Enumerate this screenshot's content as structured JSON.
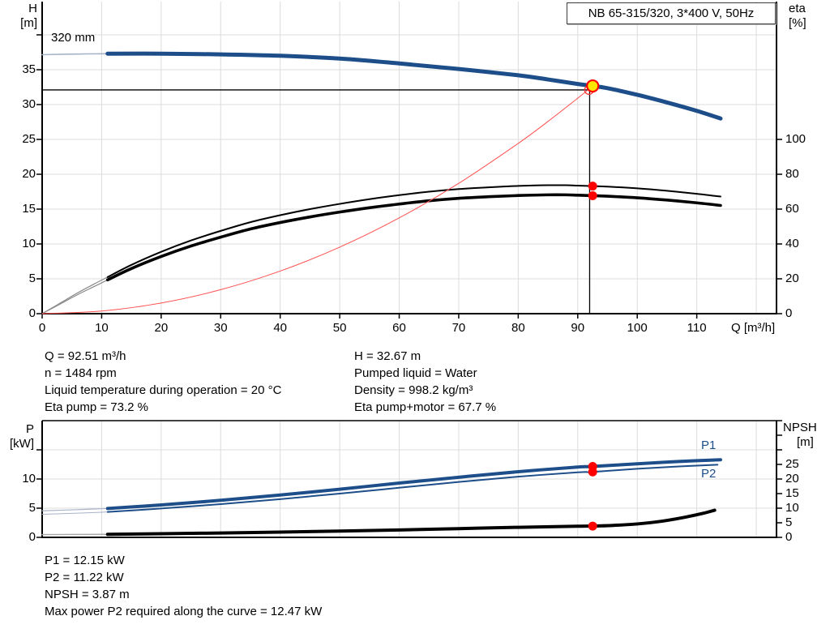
{
  "title_box": {
    "label": "NB 65-315/320, 3*400 V, 50Hz"
  },
  "axes": {
    "h_label_line1": "H",
    "h_label_line2": "[m]",
    "eta_label_line1": "eta",
    "eta_label_line2": "[%]",
    "q_label": "Q [m³/h]",
    "p_label_line1": "P",
    "p_label_line2": "[kW]",
    "npsh_label_line1": "NPSH",
    "npsh_label_line2": "[m]"
  },
  "curve_labels": {
    "impeller": "320 mm",
    "p1": "P1",
    "p2": "P2"
  },
  "info_top": {
    "left": [
      "Q = 92.51 m³/h",
      "n = 1484 rpm",
      "Liquid temperature during operation = 20 °C",
      "Eta pump = 73.2 %"
    ],
    "right": [
      "H = 32.67 m",
      "Pumped liquid = Water",
      "Density = 998.2 kg/m³",
      "Eta pump+motor = 67.7 %"
    ]
  },
  "info_bottom": [
    "P1 = 12.15 kW",
    "P2 = 11.22 kW",
    "NPSH = 3.87 m",
    "Max power P2 required along the curve = 12.47 kW"
  ],
  "colors": {
    "curve_blue": "#1d4e89",
    "curve_black": "#000000",
    "system_red": "#ff5050",
    "marker_red": "#ff0000",
    "duty_yellow": "#ffe600",
    "grid": "#dcdcdc",
    "lead_gray": "#8a8a8a",
    "lead_blue": "#a7b3c9"
  },
  "chart_data": [
    {
      "id": "qh-eta-chart",
      "type": "line",
      "title": "NB 65-315/320, 3*400 V, 50Hz",
      "xlabel": "Q [m³/h]",
      "ylabel_left": "H [m]",
      "ylabel_right": "eta [%]",
      "xlim": [
        0,
        123.4
      ],
      "ylim_left": [
        0,
        44.5
      ],
      "ylim_right_ticks_max": 100,
      "grid": true,
      "x_ticks": [
        0,
        10,
        20,
        30,
        40,
        50,
        60,
        70,
        80,
        90,
        100,
        110
      ],
      "y_left_ticks": [
        0,
        5,
        10,
        15,
        20,
        25,
        30,
        35
      ],
      "y_right_ticks": [
        0,
        20,
        40,
        60,
        80,
        100
      ],
      "series": [
        {
          "name": "pump-curve-lead",
          "axis": "H",
          "color": "#a7b3c9",
          "width": 1.6,
          "points": [
            [
              0,
              37.15
            ],
            [
              6,
              37.25
            ],
            [
              11,
              37.3
            ]
          ]
        },
        {
          "name": "pump-curve-320mm",
          "axis": "H",
          "color": "#1d4e89",
          "width": 5,
          "points": [
            [
              11,
              37.3
            ],
            [
              20,
              37.3
            ],
            [
              30,
              37.2
            ],
            [
              40,
              37.0
            ],
            [
              50,
              36.6
            ],
            [
              60,
              35.9
            ],
            [
              70,
              35.1
            ],
            [
              80,
              34.2
            ],
            [
              85,
              33.6
            ],
            [
              90,
              32.95
            ],
            [
              92.51,
              32.67
            ],
            [
              95,
              32.35
            ],
            [
              100,
              31.4
            ],
            [
              105,
              30.3
            ],
            [
              110,
              29.1
            ],
            [
              114,
              28.0
            ]
          ]
        },
        {
          "name": "eta-pump-lead",
          "axis": "eta",
          "color": "#8a8a8a",
          "width": 1.2,
          "points": [
            [
              0,
              0
            ],
            [
              3,
              6
            ],
            [
              6,
              12
            ],
            [
              9,
              17.5
            ],
            [
              11,
              21
            ]
          ]
        },
        {
          "name": "eta-pump-curve",
          "axis": "eta",
          "color": "#000000",
          "width": 2,
          "points": [
            [
              11,
              21
            ],
            [
              15,
              28
            ],
            [
              20,
              35.5
            ],
            [
              25,
              42
            ],
            [
              30,
              47.5
            ],
            [
              35,
              52.5
            ],
            [
              40,
              56.5
            ],
            [
              45,
              60
            ],
            [
              50,
              63
            ],
            [
              55,
              65.7
            ],
            [
              60,
              68
            ],
            [
              65,
              70
            ],
            [
              70,
              71.5
            ],
            [
              75,
              72.5
            ],
            [
              80,
              73.3
            ],
            [
              85,
              73.7
            ],
            [
              88,
              73.7
            ],
            [
              90,
              73.5
            ],
            [
              92.51,
              73.2
            ],
            [
              95,
              72.9
            ],
            [
              100,
              71.9
            ],
            [
              105,
              70.5
            ],
            [
              110,
              68.8
            ],
            [
              114,
              67.2
            ]
          ]
        },
        {
          "name": "eta-pump-motor-lead",
          "axis": "eta",
          "color": "#8a8a8a",
          "width": 1.2,
          "points": [
            [
              0,
              0
            ],
            [
              3,
              5.5
            ],
            [
              6,
              11
            ],
            [
              9,
              16
            ],
            [
              11,
              19.4
            ]
          ]
        },
        {
          "name": "eta-pump-motor-curve",
          "axis": "eta",
          "color": "#000000",
          "width": 3.6,
          "points": [
            [
              11,
              19.4
            ],
            [
              15,
              25.9
            ],
            [
              20,
              32.8
            ],
            [
              25,
              38.8
            ],
            [
              30,
              43.9
            ],
            [
              35,
              48.6
            ],
            [
              40,
              52.3
            ],
            [
              45,
              55.5
            ],
            [
              50,
              58.3
            ],
            [
              55,
              60.8
            ],
            [
              60,
              62.9
            ],
            [
              65,
              64.8
            ],
            [
              70,
              66.2
            ],
            [
              75,
              67.1
            ],
            [
              80,
              67.8
            ],
            [
              85,
              68.2
            ],
            [
              88,
              68.2
            ],
            [
              90,
              68.0
            ],
            [
              92.51,
              67.7
            ],
            [
              95,
              67.4
            ],
            [
              100,
              66.5
            ],
            [
              105,
              65.2
            ],
            [
              110,
              63.6
            ],
            [
              114,
              62.1
            ]
          ]
        },
        {
          "name": "system-curve",
          "axis": "H",
          "color": "#ff5050",
          "width": 1,
          "points": [
            [
              0,
              0
            ],
            [
              10,
              0.38
            ],
            [
              20,
              1.53
            ],
            [
              30,
              3.44
            ],
            [
              40,
              6.11
            ],
            [
              50,
              9.54
            ],
            [
              60,
              13.74
            ],
            [
              70,
              18.7
            ],
            [
              80,
              24.43
            ],
            [
              85,
              27.58
            ],
            [
              90,
              30.92
            ],
            [
              92.51,
              32.67
            ]
          ]
        }
      ],
      "guides": [
        {
          "name": "duty-h-line",
          "q1": 0,
          "v1": 32.1,
          "q2": 92.0,
          "v2": 32.1,
          "axis": "H"
        },
        {
          "name": "duty-q-line",
          "q1": 92.0,
          "v1": 32.1,
          "q2": 92.0,
          "v2": 0,
          "axis": "H"
        }
      ],
      "markers": [
        {
          "name": "duty-intersection-ring",
          "axis": "H",
          "q": 91.9,
          "v": 32.1,
          "r": 5.5,
          "fill": "none",
          "stroke": "#ff3333",
          "sw": 1.3,
          "interactable": false
        },
        {
          "name": "duty-point",
          "axis": "H",
          "q": 92.51,
          "v": 32.67,
          "r": 7,
          "fill": "#ffe600",
          "stroke": "#ff0000",
          "sw": 2.2,
          "interactable": true
        },
        {
          "name": "eta-pump-point",
          "axis": "eta",
          "q": 92.51,
          "v": 73.2,
          "r": 5.5,
          "fill": "#ff0000",
          "stroke": "none",
          "sw": 0,
          "interactable": false
        },
        {
          "name": "eta-pump-motor-point",
          "axis": "eta",
          "q": 92.51,
          "v": 67.7,
          "r": 5.5,
          "fill": "#ff0000",
          "stroke": "none",
          "sw": 0,
          "interactable": false
        }
      ],
      "duty_point": {
        "Q": 92.51,
        "H": 32.67,
        "eta_pump": 73.2,
        "eta_pump_motor": 67.7
      }
    },
    {
      "id": "power-npsh-chart",
      "type": "line",
      "title": "",
      "xlabel": "Q [m³/h]",
      "ylabel_left": "P [kW]",
      "ylabel_right": "NPSH [m]",
      "xlim": [
        0,
        123.4
      ],
      "ylim_left": [
        0,
        20
      ],
      "ylim_right": [
        0,
        40
      ],
      "grid": true,
      "y_left_ticks": [
        0,
        5,
        10
      ],
      "y_right_ticks": [
        0,
        5,
        10,
        15,
        20,
        25
      ],
      "series": [
        {
          "name": "p1-lead",
          "axis": "P",
          "color": "#a7b3c9",
          "width": 1.2,
          "points": [
            [
              0,
              4.55
            ],
            [
              6,
              4.75
            ],
            [
              11,
              4.95
            ]
          ]
        },
        {
          "name": "p1-curve",
          "axis": "P",
          "color": "#1d4e89",
          "width": 4,
          "points": [
            [
              11,
              4.95
            ],
            [
              20,
              5.55
            ],
            [
              30,
              6.35
            ],
            [
              40,
              7.25
            ],
            [
              50,
              8.25
            ],
            [
              60,
              9.3
            ],
            [
              70,
              10.3
            ],
            [
              80,
              11.25
            ],
            [
              90,
              12.05
            ],
            [
              92.51,
              12.15
            ],
            [
              100,
              12.6
            ],
            [
              107,
              13.0
            ],
            [
              114,
              13.3
            ]
          ]
        },
        {
          "name": "p2-lead",
          "axis": "P",
          "color": "#a7b3c9",
          "width": 1,
          "points": [
            [
              0,
              3.95
            ],
            [
              6,
              4.15
            ],
            [
              11,
              4.35
            ]
          ]
        },
        {
          "name": "p2-curve",
          "axis": "P",
          "color": "#1d4e89",
          "width": 2,
          "points": [
            [
              11,
              4.35
            ],
            [
              20,
              4.95
            ],
            [
              30,
              5.7
            ],
            [
              40,
              6.55
            ],
            [
              50,
              7.5
            ],
            [
              60,
              8.5
            ],
            [
              70,
              9.5
            ],
            [
              80,
              10.4
            ],
            [
              90,
              11.15
            ],
            [
              92.51,
              11.22
            ],
            [
              100,
              11.75
            ],
            [
              107,
              12.15
            ],
            [
              113.5,
              12.45
            ]
          ]
        },
        {
          "name": "npsh-lead",
          "axis": "NPSH",
          "color": "#aaaaaa",
          "width": 1.5,
          "points": [
            [
              0,
              0.95
            ],
            [
              6,
              1.0
            ],
            [
              11,
              1.05
            ]
          ]
        },
        {
          "name": "npsh-curve",
          "axis": "NPSH",
          "color": "#000000",
          "width": 4,
          "points": [
            [
              11,
              1.05
            ],
            [
              20,
              1.25
            ],
            [
              30,
              1.5
            ],
            [
              40,
              1.8
            ],
            [
              50,
              2.15
            ],
            [
              60,
              2.55
            ],
            [
              70,
              3.0
            ],
            [
              80,
              3.45
            ],
            [
              90,
              3.82
            ],
            [
              92.51,
              3.87
            ],
            [
              96,
              4.1
            ],
            [
              100,
              4.6
            ],
            [
              104,
              5.5
            ],
            [
              108,
              6.9
            ],
            [
              111,
              8.2
            ],
            [
              113,
              9.3
            ]
          ]
        }
      ],
      "guides": [],
      "markers": [
        {
          "name": "p1-duty-point",
          "axis": "P",
          "q": 92.51,
          "v": 12.15,
          "r": 5.5,
          "fill": "#ff0000",
          "stroke": "none",
          "sw": 0,
          "interactable": false
        },
        {
          "name": "p2-duty-point",
          "axis": "P",
          "q": 92.51,
          "v": 11.22,
          "r": 5.5,
          "fill": "#ff0000",
          "stroke": "none",
          "sw": 0,
          "interactable": false
        },
        {
          "name": "npsh-duty-point",
          "axis": "NPSH",
          "q": 92.51,
          "v": 3.87,
          "r": 5.5,
          "fill": "#ff0000",
          "stroke": "none",
          "sw": 0,
          "interactable": false
        }
      ],
      "duty_point": {
        "Q": 92.51,
        "P1_kW": 12.15,
        "P2_kW": 11.22,
        "NPSH_m": 3.87
      }
    }
  ]
}
